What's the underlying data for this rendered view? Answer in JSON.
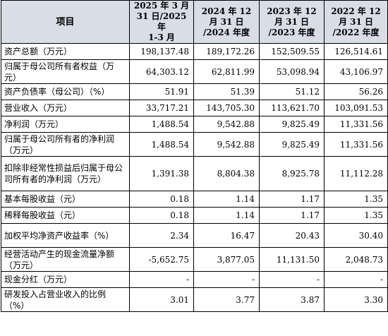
{
  "header": {
    "item": "项目",
    "periods": [
      [
        "2025 年 3 月",
        "31 日/2025 年",
        "1-3 月"
      ],
      [
        "2024 年 12",
        "月 31 日",
        "/2024 年度"
      ],
      [
        "2023 年 12",
        "月 31 日",
        "/2023 年度"
      ],
      [
        "2022 年 12",
        "月 31 日",
        "/2022 年度"
      ]
    ]
  },
  "rows": [
    {
      "label": "资产总额（万元）",
      "values": [
        "198,137.48",
        "189,172.26",
        "152,509.55",
        "126,514.61"
      ]
    },
    {
      "label": "归属于母公司所有者权益（万元）",
      "values": [
        "64,303.12",
        "62,811.99",
        "53,098.94",
        "43,106.97"
      ]
    },
    {
      "label": "资产负债率（母公司）（%）",
      "values": [
        "51.91",
        "51.39",
        "51.12",
        "56.26"
      ]
    },
    {
      "label": "营业收入（万元）",
      "values": [
        "33,717.21",
        "143,705.30",
        "113,621.70",
        "103,091.53"
      ]
    },
    {
      "label": "净利润（万元）",
      "values": [
        "1,488.54",
        "9,542.88",
        "9,825.49",
        "11,331.56"
      ]
    },
    {
      "label": "归属于母公司所有者的净利润（万元）",
      "values": [
        "1,488.54",
        "9,542.88",
        "9,825.49",
        "11,331.56"
      ]
    },
    {
      "label": "扣除非经常性损益后归属于母公司所有者的净利润（万元）",
      "values": [
        "1,391.38",
        "8,804.38",
        "8,925.78",
        "11,112.28"
      ]
    },
    {
      "label": "基本每股收益（元）",
      "values": [
        "0.18",
        "1.14",
        "1.17",
        "1.35"
      ]
    },
    {
      "label": "稀释每股收益（元）",
      "values": [
        "0.18",
        "1.14",
        "1.17",
        "1.35"
      ]
    },
    {
      "label": "加权平均净资产收益率（%）",
      "values": [
        "2.34",
        "16.47",
        "20.43",
        "30.40"
      ]
    },
    {
      "label": "经营活动产生的现金流量净额（万元）",
      "values": [
        "-5,652.75",
        "3,877.05",
        "11,131.50",
        "2,048.73"
      ]
    },
    {
      "label": "现金分红（万元）",
      "values": [
        "-",
        "-",
        "-",
        "-"
      ]
    },
    {
      "label": "研发投入占营业收入的比例（%）",
      "values": [
        "3.01",
        "3.77",
        "3.87",
        "3.30"
      ]
    }
  ]
}
